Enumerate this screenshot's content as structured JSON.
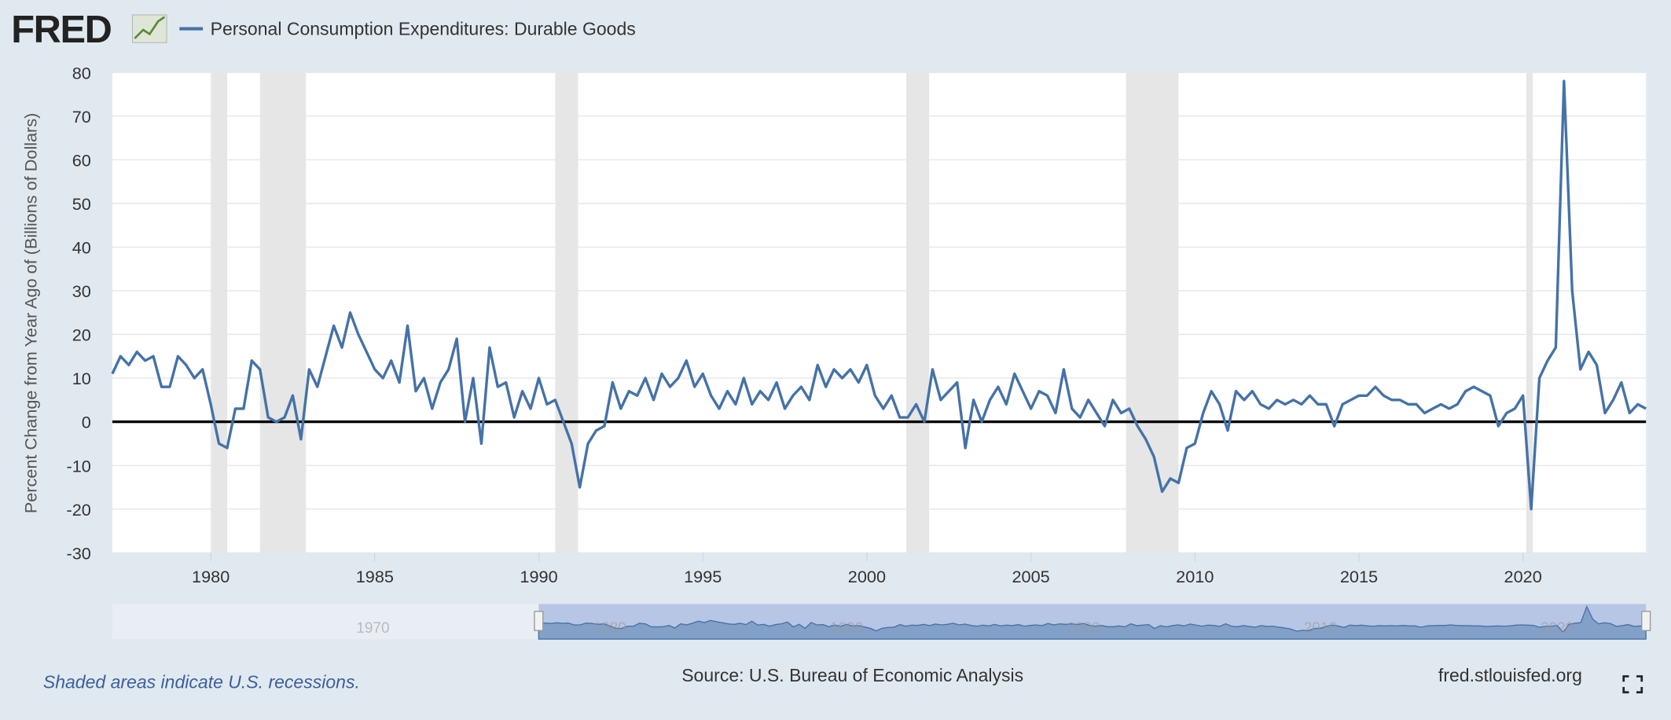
{
  "header": {
    "logo": "FRED"
  },
  "chart_data": {
    "type": "line",
    "y_label": "Percent Change from Year Ago of (Billions of Dollars)",
    "series": [
      {
        "name": "Personal Consumption Expenditures: Durable Goods",
        "color": "#4572a7",
        "values": [
          11,
          15,
          13,
          16,
          14,
          15,
          8,
          8,
          15,
          13,
          10,
          12,
          4,
          -5,
          -6,
          3,
          3,
          14,
          12,
          1,
          0,
          1,
          6,
          -4,
          12,
          8,
          15,
          22,
          17,
          25,
          20,
          16,
          12,
          10,
          14,
          9,
          22,
          7,
          10,
          3,
          9,
          12,
          19,
          0,
          10,
          -5,
          17,
          8,
          9,
          1,
          7,
          3,
          10,
          4,
          5,
          0,
          -5,
          -15,
          -5,
          -2,
          -1,
          9,
          3,
          7,
          6,
          10,
          5,
          11,
          8,
          10,
          14,
          8,
          11,
          6,
          3,
          7,
          4,
          10,
          4,
          7,
          5,
          9,
          3,
          6,
          8,
          5,
          13,
          8,
          12,
          10,
          12,
          9,
          13,
          6,
          3,
          6,
          1,
          1,
          4,
          0,
          12,
          5,
          7,
          9,
          -6,
          5,
          0,
          5,
          8,
          4,
          11,
          7,
          3,
          7,
          6,
          2,
          12,
          3,
          1,
          5,
          2,
          -1,
          5,
          2,
          3,
          -1,
          -4,
          -8,
          -16,
          -13,
          -14,
          -6,
          -5,
          2,
          7,
          4,
          -2,
          7,
          5,
          7,
          4,
          3,
          5,
          4,
          5,
          4,
          6,
          4,
          4,
          -1,
          4,
          5,
          6,
          6,
          8,
          6,
          5,
          5,
          4,
          4,
          2,
          3,
          4,
          3,
          4,
          7,
          8,
          7,
          6,
          -1,
          2,
          3,
          6,
          -20,
          10,
          14,
          17,
          78,
          30,
          12,
          16,
          13,
          2,
          5,
          9,
          2,
          4,
          3
        ]
      }
    ],
    "x": [
      1977,
      1977.25,
      1977.5,
      1977.75,
      1978,
      1978.25,
      1978.5,
      1978.75,
      1979,
      1979.25,
      1979.5,
      1979.75,
      1980,
      1980.25,
      1980.5,
      1980.75,
      1981,
      1981.25,
      1981.5,
      1981.75,
      1982,
      1982.25,
      1982.5,
      1982.75,
      1983,
      1983.25,
      1983.5,
      1983.75,
      1984,
      1984.25,
      1984.5,
      1984.75,
      1985,
      1985.25,
      1985.5,
      1985.75,
      1986,
      1986.25,
      1986.5,
      1986.75,
      1987,
      1987.25,
      1987.5,
      1987.75,
      1988,
      1988.25,
      1988.5,
      1988.75,
      1989,
      1989.25,
      1989.5,
      1989.75,
      1990,
      1990.25,
      1990.5,
      1990.75,
      1991,
      1991.25,
      1991.5,
      1991.75,
      1992,
      1992.25,
      1992.5,
      1992.75,
      1993,
      1993.25,
      1993.5,
      1993.75,
      1994,
      1994.25,
      1994.5,
      1994.75,
      1995,
      1995.25,
      1995.5,
      1995.75,
      1996,
      1996.25,
      1996.5,
      1996.75,
      1997,
      1997.25,
      1997.5,
      1997.75,
      1998,
      1998.25,
      1998.5,
      1998.75,
      1999,
      1999.25,
      1999.5,
      1999.75,
      2000,
      2000.25,
      2000.5,
      2000.75,
      2001,
      2001.25,
      2001.5,
      2001.75,
      2002,
      2002.25,
      2002.5,
      2002.75,
      2003,
      2003.25,
      2003.5,
      2003.75,
      2004,
      2004.25,
      2004.5,
      2004.75,
      2005,
      2005.25,
      2005.5,
      2005.75,
      2006,
      2006.25,
      2006.5,
      2006.75,
      2007,
      2007.25,
      2007.5,
      2007.75,
      2008,
      2008.25,
      2008.5,
      2008.75,
      2009,
      2009.25,
      2009.5,
      2009.75,
      2010,
      2010.25,
      2010.5,
      2010.75,
      2011,
      2011.25,
      2011.5,
      2011.75,
      2012,
      2012.25,
      2012.5,
      2012.75,
      2013,
      2013.25,
      2013.5,
      2013.75,
      2014,
      2014.25,
      2014.5,
      2014.75,
      2015,
      2015.25,
      2015.5,
      2015.75,
      2016,
      2016.25,
      2016.5,
      2016.75,
      2017,
      2017.25,
      2017.5,
      2017.75,
      2018,
      2018.25,
      2018.5,
      2018.75,
      2019,
      2019.25,
      2019.5,
      2019.75,
      2020,
      2020.25,
      2020.5,
      2020.75,
      2021,
      2021.25,
      2021.5,
      2021.75,
      2022,
      2022.25,
      2022.5,
      2022.75,
      2023,
      2023.25,
      2023.5,
      2023.75
    ],
    "xlim": [
      1977,
      2023.75
    ],
    "xticks": [
      1980,
      1985,
      1990,
      1995,
      2000,
      2005,
      2010,
      2015,
      2020
    ],
    "ylim": [
      -30,
      80
    ],
    "yticks": [
      -30,
      -20,
      -10,
      0,
      10,
      20,
      30,
      40,
      50,
      60,
      70,
      80
    ],
    "grid": true,
    "recessions": [
      [
        1980,
        1980.5
      ],
      [
        1981.5,
        1982.9
      ],
      [
        1990.5,
        1991.2
      ],
      [
        2001.2,
        2001.9
      ],
      [
        2007.9,
        2009.5
      ],
      [
        2020.1,
        2020.3
      ]
    ],
    "navigator": {
      "xlim": [
        1959,
        2023.75
      ],
      "xticks": [
        1970,
        1980,
        1990,
        2000,
        2010,
        2020
      ]
    }
  },
  "footer": {
    "note": "Shaded areas indicate U.S. recessions.",
    "source": "Source: U.S. Bureau of Economic Analysis",
    "site": "fred.stlouisfed.org"
  }
}
